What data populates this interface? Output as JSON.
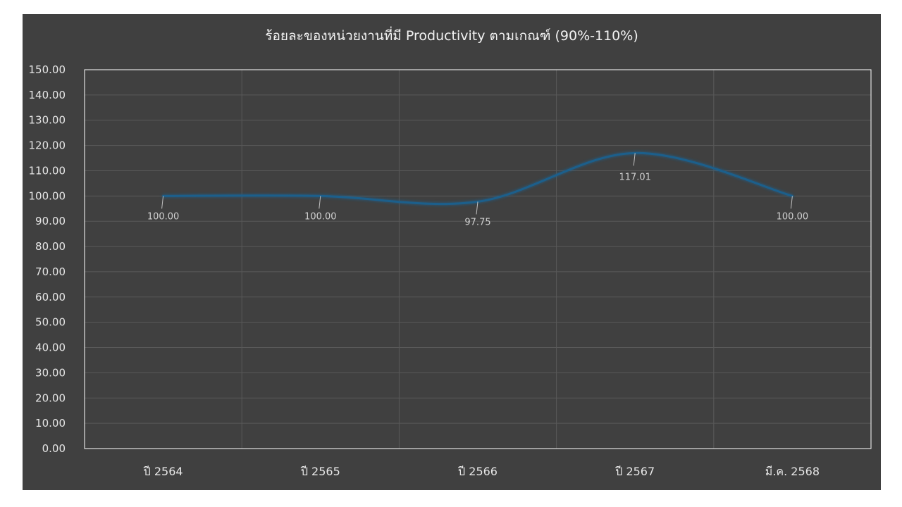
{
  "chart_data": {
    "type": "line",
    "title": "ร้อยละของหน่วยงานที่มี Productivity ตามเกณฑ์ (90%-110%)",
    "xlabel": "",
    "ylabel": "",
    "categories": [
      "ปี 2564",
      "ปี 2565",
      "ปี 2566",
      "ปี 2567",
      "มี.ค. 2568"
    ],
    "series": [
      {
        "values": [
          100.0,
          100.0,
          97.75,
          117.01,
          100.0
        ],
        "data_labels": [
          "100.00",
          "100.00",
          "97.75",
          "117.01",
          "100.00"
        ]
      }
    ],
    "ylim": [
      0,
      150
    ],
    "y_ticks": [
      "0.00",
      "10.00",
      "20.00",
      "30.00",
      "40.00",
      "50.00",
      "60.00",
      "70.00",
      "80.00",
      "90.00",
      "100.00",
      "110.00",
      "120.00",
      "130.00",
      "140.00",
      "150.00"
    ],
    "grid": true,
    "smooth": true,
    "legend": "none",
    "colors": {
      "background": "#404040",
      "line": "#1f5f8b",
      "grid": "#595959",
      "plot_border": "#ffffff",
      "text": "#e6e6e6"
    }
  }
}
